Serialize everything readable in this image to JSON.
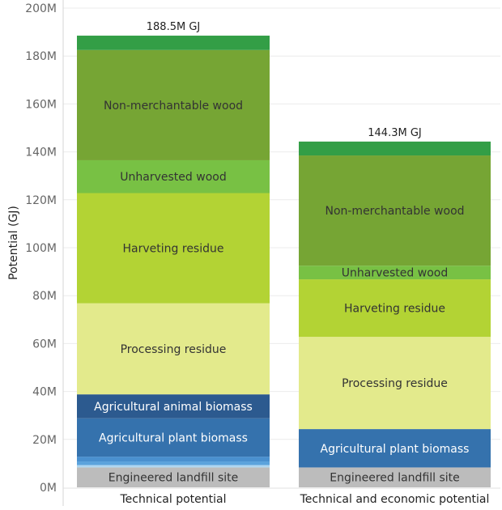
{
  "chart_data": {
    "type": "bar",
    "stacked": true,
    "categories": [
      "Technical potential",
      "Technical and economic potential"
    ],
    "ylabel": "Potential (GJ)",
    "ylim": [
      0,
      200000000
    ],
    "yticks": [
      {
        "value": 0,
        "label": "0M"
      },
      {
        "value": 20000000,
        "label": "20M"
      },
      {
        "value": 40000000,
        "label": "40M"
      },
      {
        "value": 60000000,
        "label": "60M"
      },
      {
        "value": 80000000,
        "label": "80M"
      },
      {
        "value": 100000000,
        "label": "100M"
      },
      {
        "value": 120000000,
        "label": "120M"
      },
      {
        "value": 140000000,
        "label": "140M"
      },
      {
        "value": 160000000,
        "label": "160M"
      },
      {
        "value": 180000000,
        "label": "180M"
      },
      {
        "value": 200000000,
        "label": "200M"
      }
    ],
    "totals": [
      "188.5M GJ",
      "144.3M GJ"
    ],
    "grid": true,
    "series": [
      {
        "name": "Engineered landfill site",
        "color": "#bcbcbc",
        "text_color": "#333333",
        "values": [
          8300000,
          8300000
        ],
        "labels": [
          "Engineered landfill site",
          "Engineered landfill site"
        ]
      },
      {
        "name": "",
        "color": "#aed6f1",
        "text_color": "#ffffff",
        "values": [
          1000000,
          0
        ],
        "labels": [
          "",
          ""
        ]
      },
      {
        "name": "",
        "color": "#5ba3dc",
        "text_color": "#ffffff",
        "values": [
          1500000,
          0
        ],
        "labels": [
          "",
          ""
        ]
      },
      {
        "name": "",
        "color": "#4a90cf",
        "text_color": "#ffffff",
        "values": [
          2000000,
          0
        ],
        "labels": [
          "",
          ""
        ]
      },
      {
        "name": "Agricultural plant biomass",
        "color": "#3572ad",
        "text_color": "#ffffff",
        "values": [
          16000000,
          16000000
        ],
        "labels": [
          "Agricultural plant biomass",
          "Agricultural plant biomass"
        ]
      },
      {
        "name": "Agricultural animal biomass",
        "color": "#2c5a8f",
        "text_color": "#ffffff",
        "values": [
          10000000,
          0
        ],
        "labels": [
          "Agricultural animal biomass",
          ""
        ]
      },
      {
        "name": "Processing residue",
        "color": "#e3ea8c",
        "text_color": "#333333",
        "values": [
          38000000,
          38500000
        ],
        "labels": [
          "Processing residue",
          "Processing residue"
        ]
      },
      {
        "name": "Harveting residue",
        "color": "#b3d334",
        "text_color": "#333333",
        "values": [
          46000000,
          24000000
        ],
        "labels": [
          "Harveting residue",
          "Harveting residue"
        ]
      },
      {
        "name": "Unharvested wood",
        "color": "#78c144",
        "text_color": "#333333",
        "values": [
          13700000,
          5700000
        ],
        "labels": [
          "Unharvested wood",
          "Unharvested wood"
        ]
      },
      {
        "name": "Non-merchantable wood",
        "color": "#76a534",
        "text_color": "#333333",
        "values": [
          46000000,
          46000000
        ],
        "labels": [
          "Non-merchantable wood",
          "Non-merchantable wood"
        ]
      },
      {
        "name": "",
        "color": "#339e46",
        "text_color": "#ffffff",
        "values": [
          6000000,
          5800000
        ],
        "labels": [
          "",
          ""
        ]
      }
    ]
  }
}
